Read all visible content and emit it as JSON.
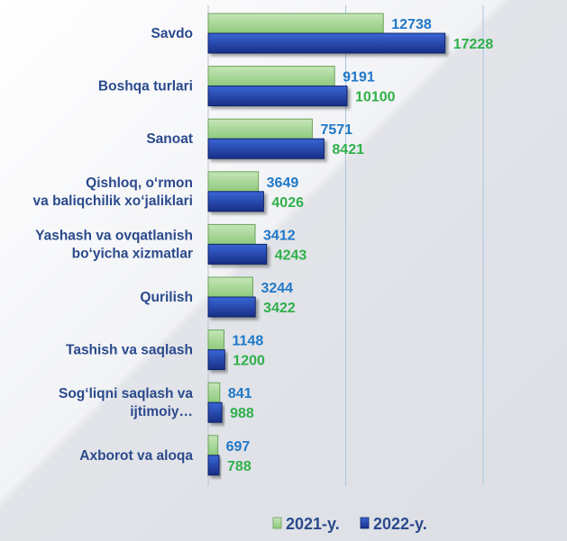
{
  "chart_data": {
    "type": "bar",
    "orientation": "horizontal",
    "categories": [
      [
        "Savdo"
      ],
      [
        "Boshqa turlari"
      ],
      [
        "Sanoat"
      ],
      [
        "Qishloq, o‘rmon",
        "va baliqchilik  xo‘jaliklari"
      ],
      [
        "Yashash va ovqatlanish",
        "bo‘yicha xizmatlar"
      ],
      [
        "Qurilish"
      ],
      [
        "Tashish va saqlash"
      ],
      [
        "Sog‘liqni saqlash va",
        "ijtimoiy…"
      ],
      [
        "Axborot va aloqa"
      ]
    ],
    "series": [
      {
        "name": "2021-y.",
        "values": [
          12738,
          9191,
          7571,
          3649,
          3412,
          3244,
          1148,
          841,
          697
        ],
        "color": "#8ec97c",
        "label_color": "#1f78c8"
      },
      {
        "name": "2022-y.",
        "values": [
          17228,
          10100,
          8421,
          4026,
          4243,
          3422,
          1200,
          988,
          788
        ],
        "color": "#1d3fa8",
        "label_color": "#2fb04a"
      }
    ],
    "xlim": [
      0,
      20000
    ],
    "gridlines": [
      10000,
      20000
    ],
    "legend_position": "bottom",
    "category_label_color": "#2b4a8c"
  }
}
